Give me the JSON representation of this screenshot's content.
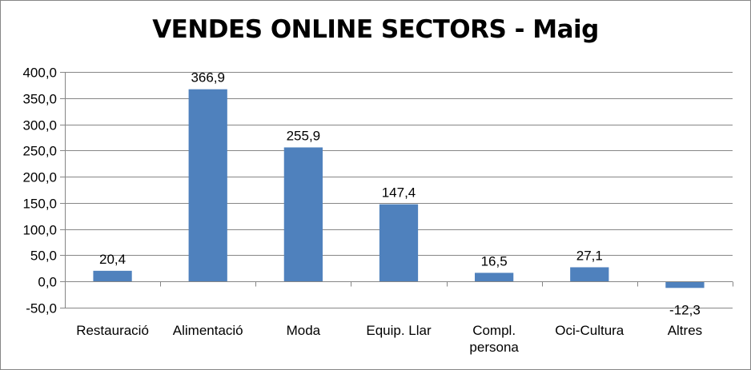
{
  "chart_data": {
    "type": "bar",
    "title": "VENDES ONLINE SECTORS - Maig",
    "xlabel": "",
    "ylabel": "",
    "categories": [
      [
        "Restauració"
      ],
      [
        "Alimentació"
      ],
      [
        "Moda"
      ],
      [
        "Equip. Llar"
      ],
      [
        "Compl.",
        "persona"
      ],
      [
        "Oci-Cultura"
      ],
      [
        "Altres"
      ]
    ],
    "values": [
      20.4,
      366.9,
      255.9,
      147.4,
      16.5,
      27.1,
      -12.3
    ],
    "data_labels": [
      "20,4",
      "366,9",
      "255,9",
      "147,4",
      "16,5",
      "27,1",
      "-12,3"
    ],
    "ylim": [
      -50,
      400
    ],
    "yticks": [
      -50,
      0,
      50,
      100,
      150,
      200,
      250,
      300,
      350,
      400
    ],
    "ytick_labels": [
      "-50,0",
      "0,0",
      "50,0",
      "100,0",
      "150,0",
      "200,0",
      "250,0",
      "300,0",
      "350,0",
      "400,0"
    ],
    "grid": true,
    "legend": "none",
    "bar_color": "#4F81BD",
    "grid_color": "#868686"
  }
}
